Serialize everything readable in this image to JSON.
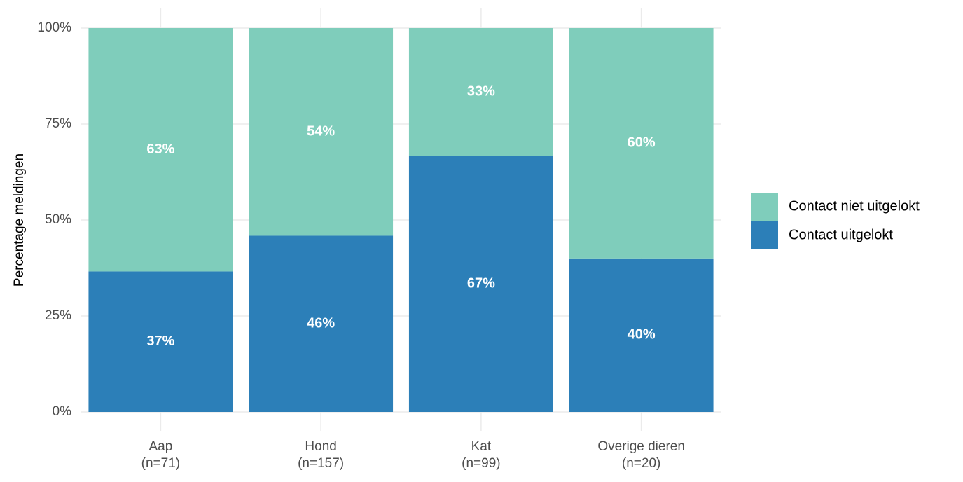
{
  "chart_data": {
    "type": "stacked_bar",
    "y_label": "Percentage meldingen",
    "categories": [
      "Aap\n(n=71)",
      "Hond\n(n=157)",
      "Kat\n(n=99)",
      "Overige dieren\n(n=20)"
    ],
    "series": [
      {
        "name": "Contact uitgelokt",
        "color": "#2c7fb8",
        "values": [
          36.6,
          45.9,
          66.7,
          40
        ],
        "value_labels": [
          "37%",
          "46%",
          "67%",
          "40%"
        ]
      },
      {
        "name": "Contact niet uitgelokt",
        "color": "#7fcdbb",
        "values": [
          63.4,
          54.1,
          33.3,
          60
        ],
        "value_labels": [
          "63%",
          "54%",
          "33%",
          "60%"
        ]
      }
    ],
    "ylim": [
      0,
      100
    ],
    "yticks": [
      {
        "value": 0,
        "label": "0%"
      },
      {
        "value": 25,
        "label": "25%"
      },
      {
        "value": 50,
        "label": "50%"
      },
      {
        "value": 75,
        "label": "75%"
      },
      {
        "value": 100,
        "label": "100%"
      }
    ],
    "minor_yticks": [
      12.5,
      37.5,
      62.5,
      87.5
    ],
    "grid": true,
    "legend": "right"
  }
}
